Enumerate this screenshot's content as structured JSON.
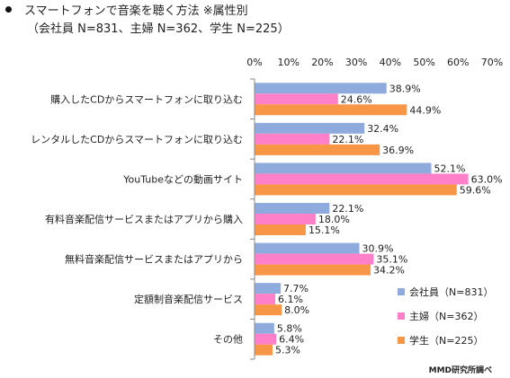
{
  "header": {
    "title": "スマートフォンで音楽を聴く方法 ※属性別",
    "subtitle": "（会社員 N=831、主婦 N=362、学生 N=225）"
  },
  "source": "MMD研究所調べ",
  "chart_data": {
    "type": "bar",
    "orientation": "horizontal",
    "categories": [
      "購入したCDからスマートフォンに取り込む",
      "レンタルしたCDからスマートフォンに取り込む",
      "YouTubeなどの動画サイト",
      "有料音楽配信サービスまたはアプリから購入",
      "無料音楽配信サービスまたはアプリから",
      "定額制音楽配信サービス",
      "その他"
    ],
    "series": [
      {
        "name": "会社員（N=831）",
        "color": "#8faadc",
        "values": [
          38.9,
          32.4,
          52.1,
          22.1,
          30.9,
          7.7,
          5.8
        ]
      },
      {
        "name": "主婦（N=362）",
        "color": "#ff7fc9",
        "values": [
          24.6,
          22.1,
          63.0,
          18.0,
          35.1,
          6.1,
          6.4
        ]
      },
      {
        "name": "学生（N=225）",
        "color": "#f79646",
        "values": [
          44.9,
          36.9,
          59.6,
          15.1,
          34.2,
          8.0,
          5.3
        ]
      }
    ],
    "xlim": [
      0,
      70
    ],
    "xticks": [
      "0%",
      "10%",
      "20%",
      "30%",
      "40%",
      "50%",
      "60%",
      "70%"
    ],
    "value_suffix": "%",
    "grid": false,
    "legend_position": "bottom-right"
  }
}
